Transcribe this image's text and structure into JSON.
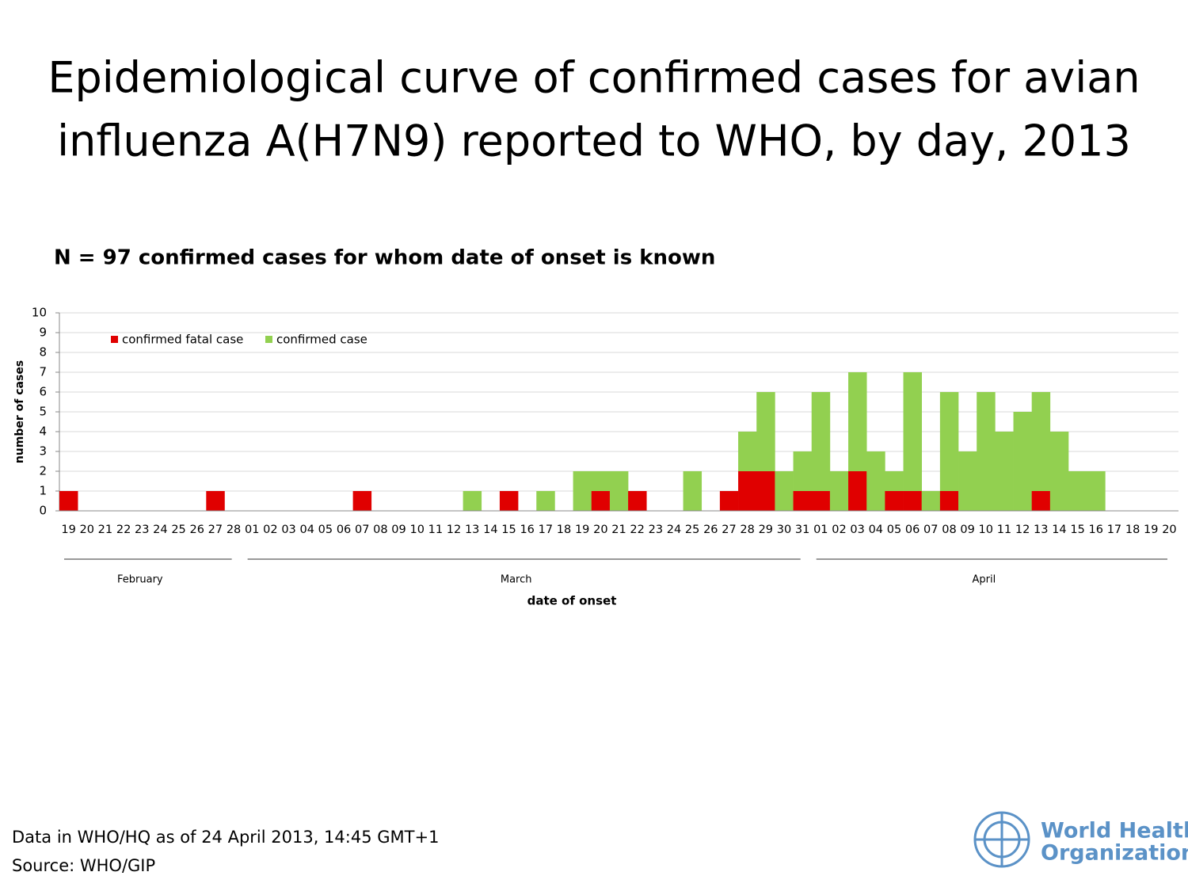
{
  "chart_data": {
    "type": "stacked_bar",
    "title": "Epidemiological curve of confirmed cases for avian influenza A(H7N9) reported to WHO, by day, 2013",
    "subtitle": "N = 97 confirmed cases for whom date of onset is known",
    "x_label": "date of onset",
    "y_label": "number of cases",
    "categories": [
      "19",
      "20",
      "21",
      "22",
      "23",
      "24",
      "25",
      "26",
      "27",
      "28",
      "01",
      "02",
      "03",
      "04",
      "05",
      "06",
      "07",
      "08",
      "09",
      "10",
      "11",
      "12",
      "13",
      "14",
      "15",
      "16",
      "17",
      "18",
      "19",
      "20",
      "21",
      "22",
      "23",
      "24",
      "25",
      "26",
      "27",
      "28",
      "29",
      "30",
      "31",
      "01",
      "02",
      "03",
      "04",
      "05",
      "06",
      "07",
      "08",
      "09",
      "10",
      "11",
      "12",
      "13",
      "14",
      "15",
      "16",
      "17",
      "18",
      "19",
      "20"
    ],
    "months": [
      "February",
      "March",
      "April"
    ],
    "series": [
      {
        "name": "confirmed fatal case",
        "color": "#e00000",
        "values": [
          1,
          0,
          0,
          0,
          0,
          0,
          0,
          0,
          1,
          0,
          0,
          0,
          0,
          0,
          0,
          0,
          1,
          0,
          0,
          0,
          0,
          0,
          0,
          0,
          1,
          0,
          0,
          0,
          0,
          1,
          0,
          1,
          0,
          0,
          0,
          0,
          1,
          2,
          2,
          0,
          1,
          1,
          0,
          2,
          0,
          1,
          1,
          0,
          1,
          0,
          0,
          0,
          0,
          1,
          0,
          0,
          0,
          0,
          0,
          0,
          0
        ]
      },
      {
        "name": "confirmed case",
        "color": "#92d050",
        "values": [
          0,
          0,
          0,
          0,
          0,
          0,
          0,
          0,
          0,
          0,
          0,
          0,
          0,
          0,
          0,
          0,
          0,
          0,
          0,
          0,
          0,
          0,
          1,
          0,
          0,
          0,
          1,
          0,
          2,
          1,
          2,
          0,
          0,
          0,
          2,
          0,
          0,
          2,
          4,
          2,
          2,
          5,
          2,
          5,
          3,
          1,
          6,
          1,
          5,
          3,
          6,
          4,
          5,
          5,
          4,
          2,
          2,
          0,
          0,
          0,
          0
        ]
      }
    ],
    "ylim": [
      0,
      10
    ],
    "yticks": [
      0,
      1,
      2,
      3,
      4,
      5,
      6,
      7,
      8,
      9,
      10
    ],
    "grid": true
  },
  "footer": [
    "Data in WHO/HQ as of 24 April 2013, 14:45 GMT+1",
    "Source: WHO/GIP"
  ],
  "logo": [
    "World Health",
    "Organization"
  ]
}
